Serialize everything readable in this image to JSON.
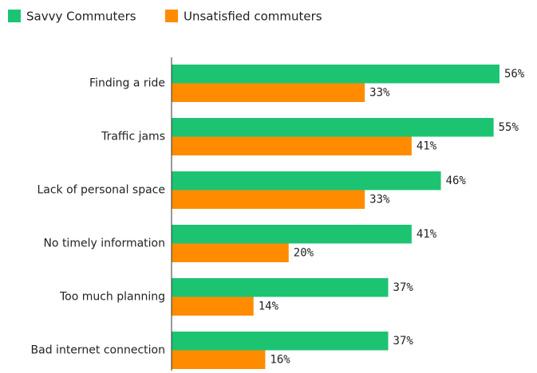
{
  "chart_data": {
    "type": "bar",
    "orientation": "horizontal",
    "categories": [
      "Finding a ride",
      "Traffic jams",
      "Lack of personal space",
      "No timely information",
      "Too much planning",
      "Bad internet connection"
    ],
    "series": [
      {
        "name": "Savvy Commuters",
        "color": "#1cc472",
        "values": [
          56,
          55,
          46,
          41,
          37,
          37
        ],
        "value_labels": [
          "56%",
          "55%",
          "46%",
          "41%",
          "37%",
          "37%"
        ]
      },
      {
        "name": "Unsatisfied commuters",
        "color": "#ff8c00",
        "values": [
          33,
          41,
          33,
          20,
          14,
          16
        ],
        "value_labels": [
          "33%",
          "41%",
          "33%",
          "20%",
          "14%",
          "16%"
        ]
      }
    ],
    "xlim": [
      0,
      62
    ],
    "legend": "top-left"
  }
}
